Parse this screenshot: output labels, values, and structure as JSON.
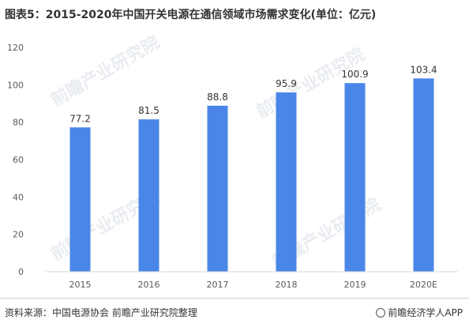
{
  "title": "图表5：2015-2020年中国开关电源在通信领域市场需求变化(单位：亿元)",
  "footer": {
    "source": "资料来源：中国电源协会 前瞻产业研究院整理",
    "brand": "前瞻经济学人APP"
  },
  "watermark": "前瞻产业研究院",
  "colors": {
    "bar": "#4a86e8",
    "axis_text": "#595959",
    "grid": "#d9d9d9"
  },
  "chart_data": {
    "type": "bar",
    "categories": [
      "2015",
      "2016",
      "2017",
      "2018",
      "2019",
      "2020E"
    ],
    "values": [
      77.2,
      81.5,
      88.8,
      95.9,
      100.9,
      103.4
    ],
    "value_labels": [
      "77.2",
      "81.5",
      "88.8",
      "95.9",
      "100.9",
      "103.4"
    ],
    "ylim": [
      0,
      120
    ],
    "yticks": [
      0,
      20,
      40,
      60,
      80,
      100,
      120
    ],
    "grid": false,
    "legend": "none"
  }
}
